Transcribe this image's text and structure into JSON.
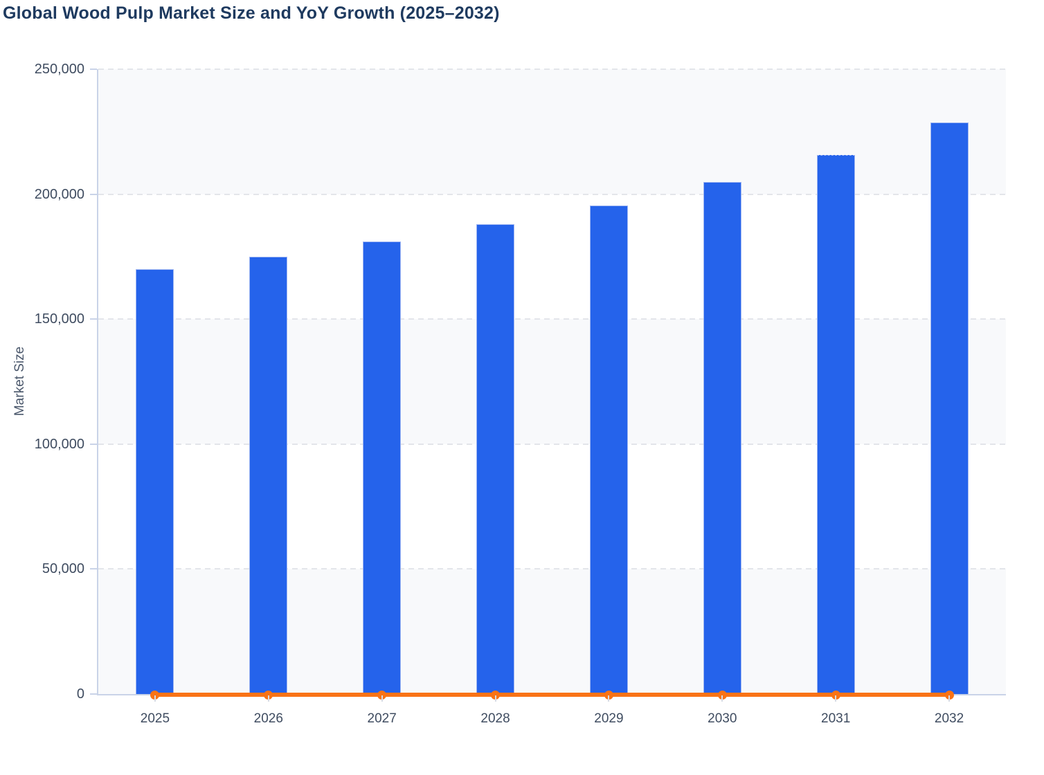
{
  "page": {
    "title": "Global Wood Pulp Market Size and YoY Growth (2025–2032)"
  },
  "chart_data": {
    "type": "bar",
    "title": "Global Wood Pulp Market Size and YoY Growth (2025–2032)",
    "categories": [
      "2025",
      "2026",
      "2027",
      "2028",
      "2029",
      "2030",
      "2031",
      "2032"
    ],
    "series": [
      {
        "name": "Market Size",
        "type": "bar",
        "color": "#2563eb",
        "values": [
          170000,
          175000,
          181000,
          188000,
          195500,
          205000,
          215800,
          228800
        ]
      },
      {
        "name": "YoY Growth",
        "type": "line",
        "color": "#f97316",
        "values": [
          0,
          2.9,
          3.4,
          3.9,
          4.0,
          4.9,
          5.3,
          6.0
        ]
      }
    ],
    "xlabel": "",
    "ylabel": "Market Size",
    "ylim": [
      0,
      250000
    ],
    "ytick_step": 50000,
    "ytick_labels": [
      "0",
      "50,000",
      "100,000",
      "150,000",
      "200,000",
      "250,000"
    ],
    "grid": "horizontal-dashed",
    "legend": "none",
    "plot_band_colors": [
      "#f8f9fb",
      "#ffffff"
    ],
    "axis_color": "#c9d3e8",
    "gridline_color": "#e3e5ea"
  }
}
